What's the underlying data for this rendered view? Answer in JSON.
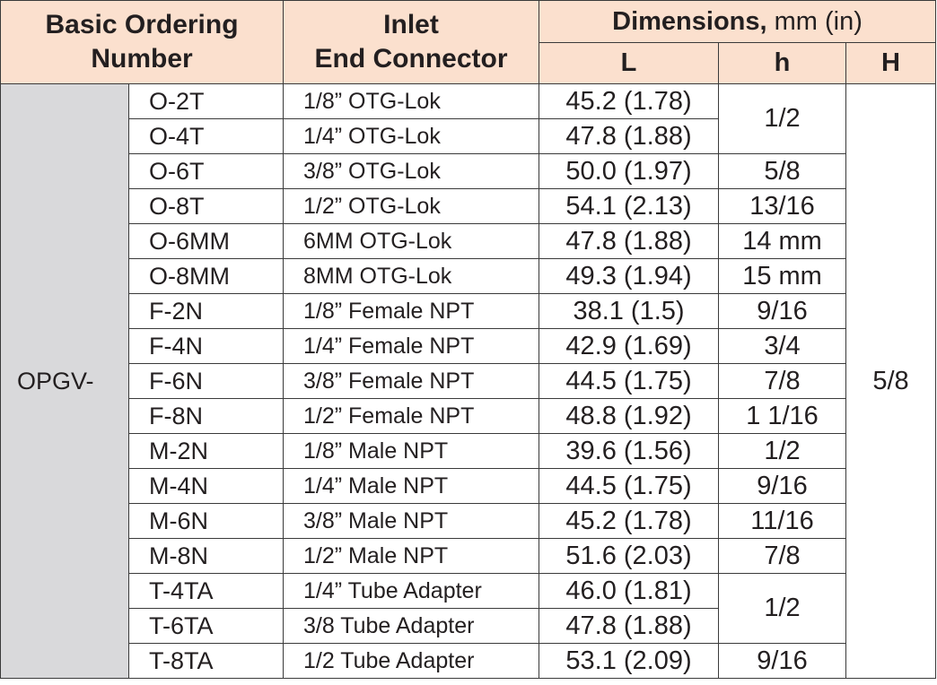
{
  "header": {
    "ordering": [
      "Basic Ordering",
      "Number"
    ],
    "connector": [
      "Inlet",
      "End Connector"
    ],
    "dimensions_bold": "Dimensions,",
    "dimensions_unit": " mm (in)",
    "col_L": "L",
    "col_h": "h",
    "col_H": "H"
  },
  "prefix": "OPGV-",
  "H_value": "5/8",
  "rows": [
    {
      "model": "O-2T",
      "connector": "1/8” OTG-Lok",
      "L": "45.2 (1.78)",
      "h": "1/2"
    },
    {
      "model": "O-4T",
      "connector": "1/4” OTG-Lok",
      "L": "47.8 (1.88)"
    },
    {
      "model": "O-6T",
      "connector": "3/8” OTG-Lok",
      "L": "50.0 (1.97)",
      "h": "5/8"
    },
    {
      "model": "O-8T",
      "connector": "1/2” OTG-Lok",
      "L": "54.1 (2.13)",
      "h": "13/16"
    },
    {
      "model": "O-6MM",
      "connector": "6MM OTG-Lok",
      "L": "47.8 (1.88)",
      "h": "14 mm"
    },
    {
      "model": "O-8MM",
      "connector": "8MM OTG-Lok",
      "L": "49.3 (1.94)",
      "h": "15 mm"
    },
    {
      "model": "F-2N",
      "connector": "1/8” Female NPT",
      "L": "38.1 (1.5)",
      "h": "9/16"
    },
    {
      "model": "F-4N",
      "connector": "1/4” Female NPT",
      "L": "42.9 (1.69)",
      "h": "3/4"
    },
    {
      "model": "F-6N",
      "connector": "3/8” Female NPT",
      "L": "44.5 (1.75)",
      "h": "7/8"
    },
    {
      "model": "F-8N",
      "connector": "1/2” Female NPT",
      "L": "48.8 (1.92)",
      "h": "1 1/16"
    },
    {
      "model": "M-2N",
      "connector": "1/8” Male NPT",
      "L": "39.6 (1.56)",
      "h": "1/2"
    },
    {
      "model": "M-4N",
      "connector": "1/4” Male NPT",
      "L": "44.5 (1.75)",
      "h": "9/16"
    },
    {
      "model": "M-6N",
      "connector": "3/8” Male NPT",
      "L": "45.2 (1.78)",
      "h": "11/16"
    },
    {
      "model": "M-8N",
      "connector": "1/2” Male NPT",
      "L": "51.6 (2.03)",
      "h": "7/8"
    },
    {
      "model": "T-4TA",
      "connector": "1/4” Tube Adapter",
      "L": "46.0 (1.81)",
      "h": "1/2"
    },
    {
      "model": "T-6TA",
      "connector": "3/8 Tube Adapter",
      "L": "47.8 (1.88)"
    },
    {
      "model": "T-8TA",
      "connector": "1/2 Tube Adapter",
      "L": "53.1 (2.09)",
      "h": "9/16"
    }
  ]
}
